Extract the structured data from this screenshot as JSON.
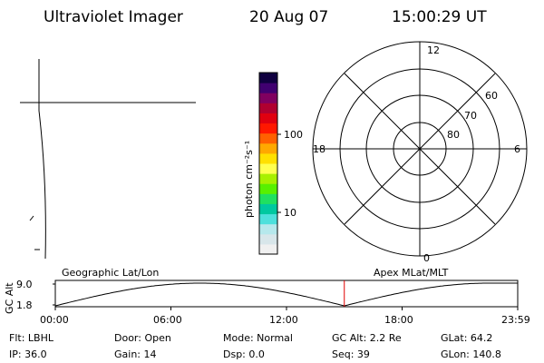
{
  "header": {
    "instrument": "Ultraviolet Imager",
    "date": "20 Aug 07",
    "time": "15:00:29 UT"
  },
  "colorbar": {
    "unit_label": "photon cm⁻²s⁻¹",
    "tick_labels": [
      "100",
      "10"
    ],
    "colors": [
      "#f0f0f0",
      "#d8e6ea",
      "#b6e8ec",
      "#4ee0dc",
      "#00c8a0",
      "#20e060",
      "#58f000",
      "#a8f000",
      "#ffff50",
      "#ffe000",
      "#ffa800",
      "#ff6000",
      "#ff1800",
      "#e00010",
      "#b00030",
      "#800060",
      "#400070",
      "#100040"
    ]
  },
  "polar": {
    "clock_labels": [
      "12",
      "6",
      "0",
      "18"
    ],
    "lat_labels": [
      "60",
      "70",
      "80"
    ]
  },
  "timeline": {
    "ylabel": "GC Alt",
    "ytick_labels": [
      "9.0",
      "1.8"
    ],
    "left_label": "Geographic Lat/Lon",
    "right_label": "Apex MLat/MLT",
    "xtick_labels": [
      "00:00",
      "06:00",
      "12:00",
      "18:00",
      "23:59"
    ],
    "current_time_hours": 15.0,
    "orbit_min_hours": [
      0.0,
      15.0
    ],
    "marker_color": "#e00000"
  },
  "status": {
    "row1": {
      "filter": "Flt: LBHL",
      "door": "Door: Open",
      "mode": "Mode: Normal",
      "gc_alt": "GC Alt: 2.2 Re",
      "glat": "GLat:  64.2"
    },
    "row2": {
      "ip": "IP: 36.0",
      "gain": "Gain: 14",
      "dsp": "Dsp:      0.0",
      "seq": "Seq: 39",
      "glon": "GLon:  140.8"
    }
  }
}
